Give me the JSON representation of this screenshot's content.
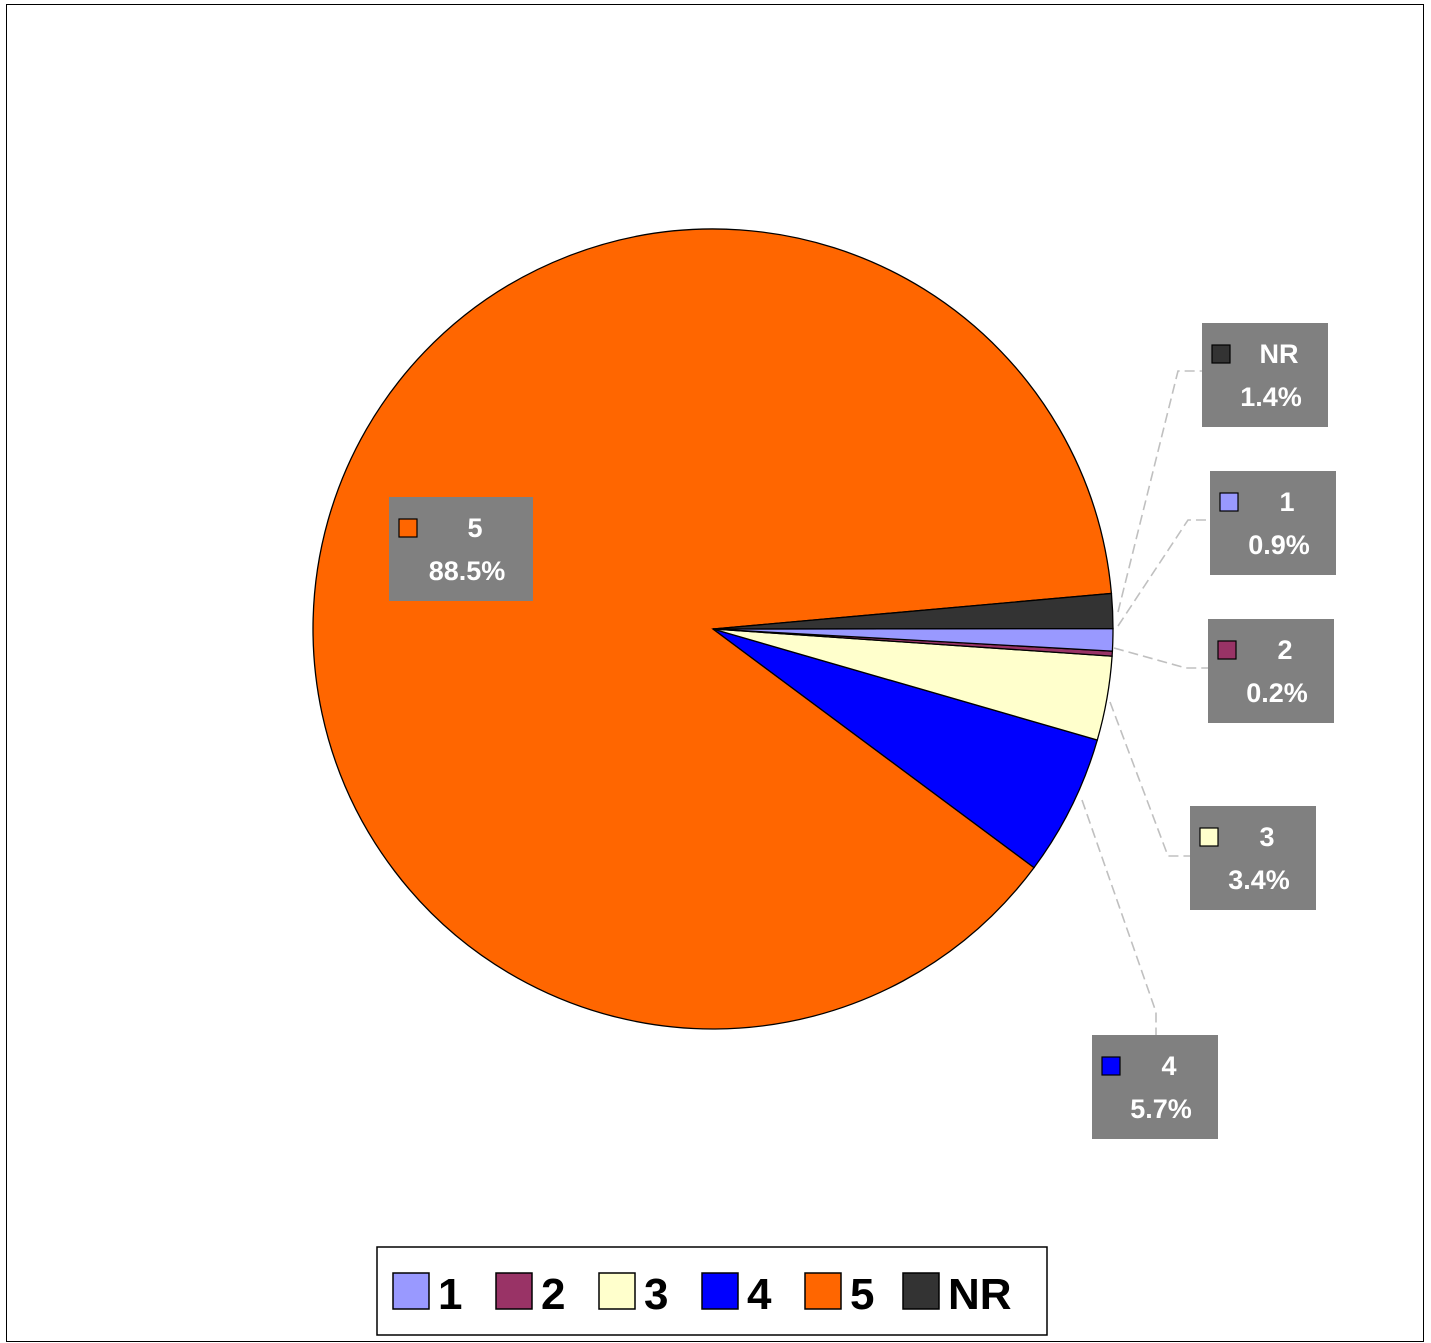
{
  "chart_data": {
    "type": "pie",
    "categories": [
      "1",
      "2",
      "3",
      "4",
      "5",
      "NR"
    ],
    "values": [
      0.9,
      0.2,
      3.4,
      5.7,
      88.5,
      1.4
    ],
    "value_labels": [
      "0.9%",
      "0.2%",
      "3.4%",
      "5.7%",
      "88.5%",
      "1.4%"
    ],
    "colors": [
      "#9999ff",
      "#993366",
      "#ffffcc",
      "#0000ff",
      "#ff6600",
      "#333333"
    ],
    "label_background": "#808080",
    "label_text_color": "#ffffff",
    "legend": {
      "placement": "bottom",
      "entries": [
        "1",
        "2",
        "3",
        "4",
        "5",
        "NR"
      ]
    }
  }
}
